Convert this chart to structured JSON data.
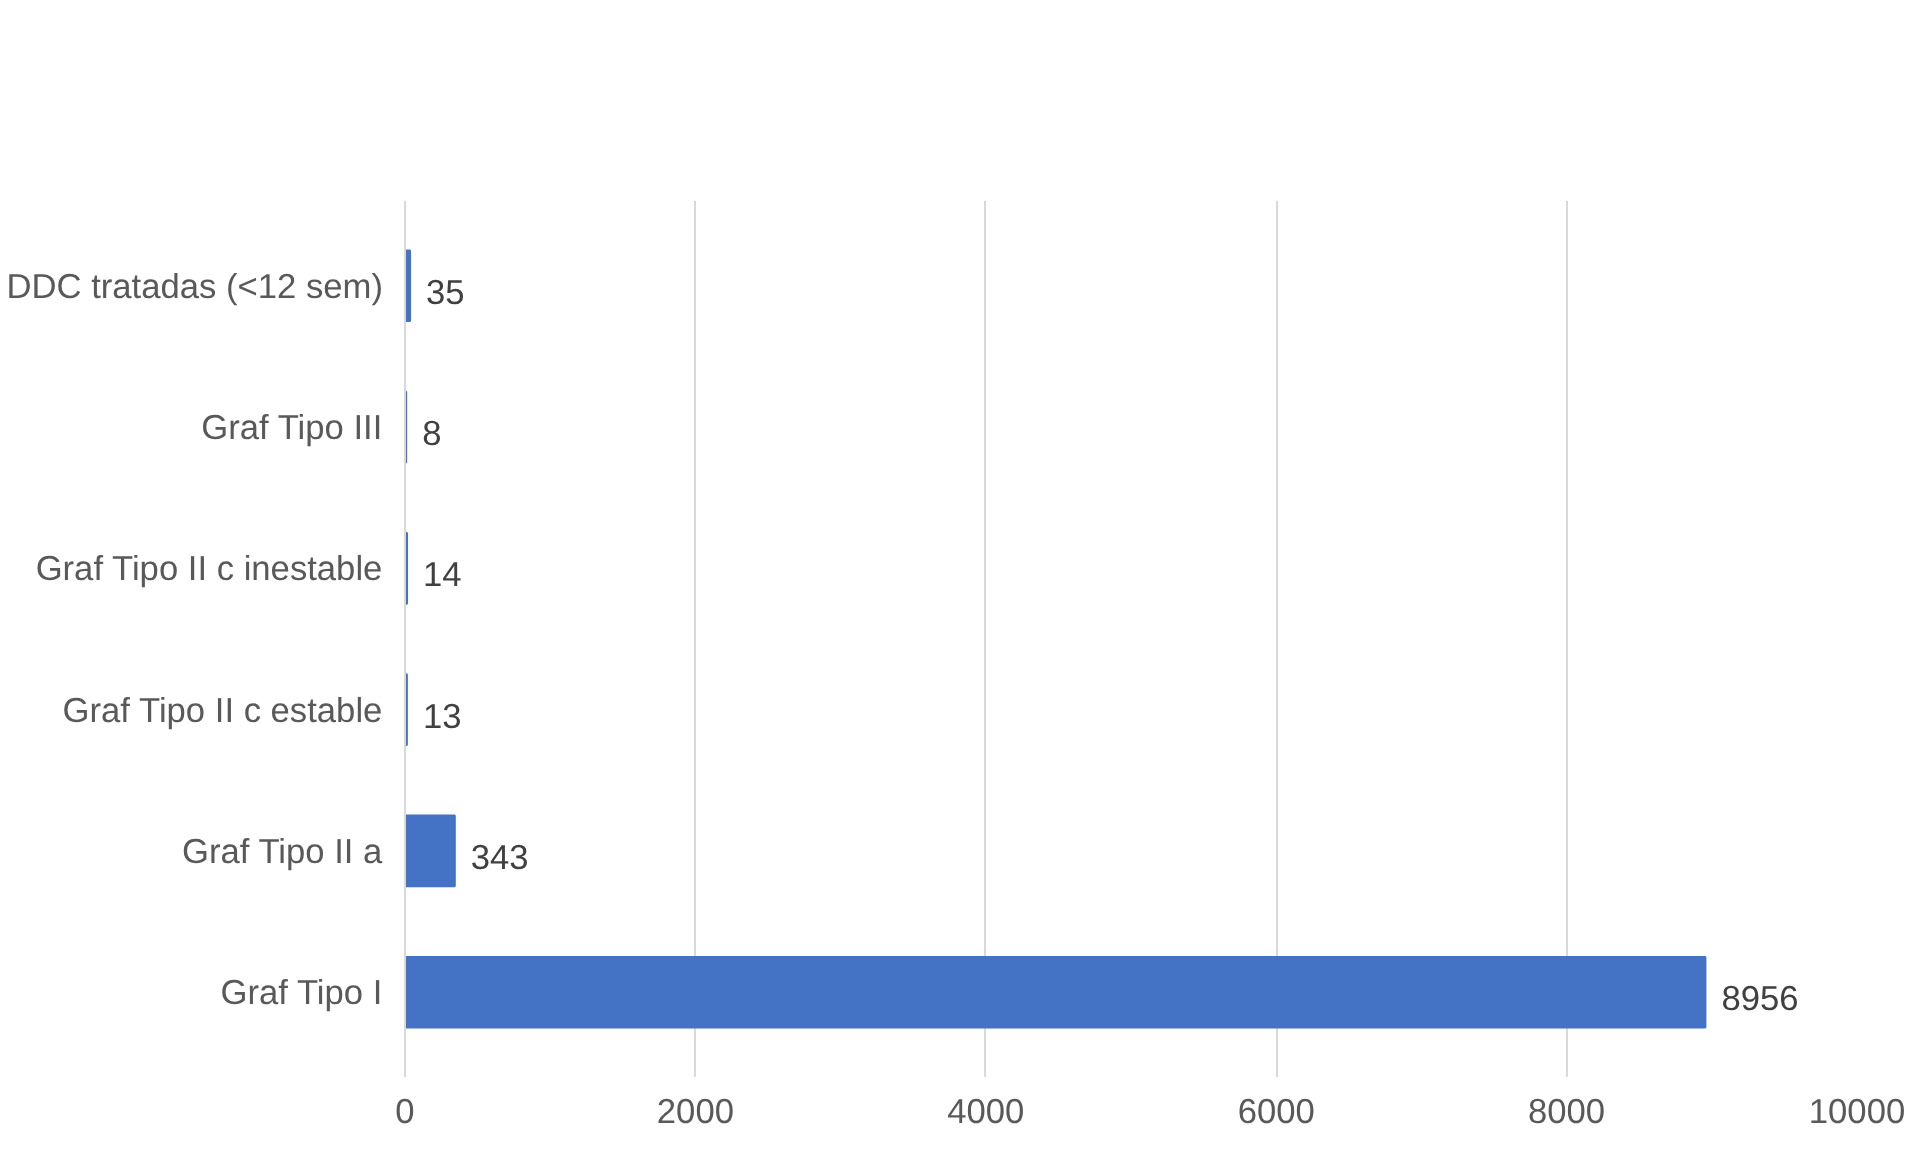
{
  "chart_data": {
    "type": "bar",
    "orientation": "horizontal",
    "categories": [
      "DDC tratadas (<12 sem)",
      "Graf Tipo III",
      "Graf Tipo II c inestable",
      "Graf Tipo II c estable",
      "Graf Tipo II a",
      "Graf Tipo I"
    ],
    "values": [
      35,
      8,
      14,
      13,
      343,
      8956
    ],
    "color": "#4472c4",
    "xlim": [
      0,
      10000
    ],
    "xticks": [
      0,
      2000,
      4000,
      6000,
      8000,
      10000
    ],
    "grid": "x",
    "data_labels": true
  }
}
